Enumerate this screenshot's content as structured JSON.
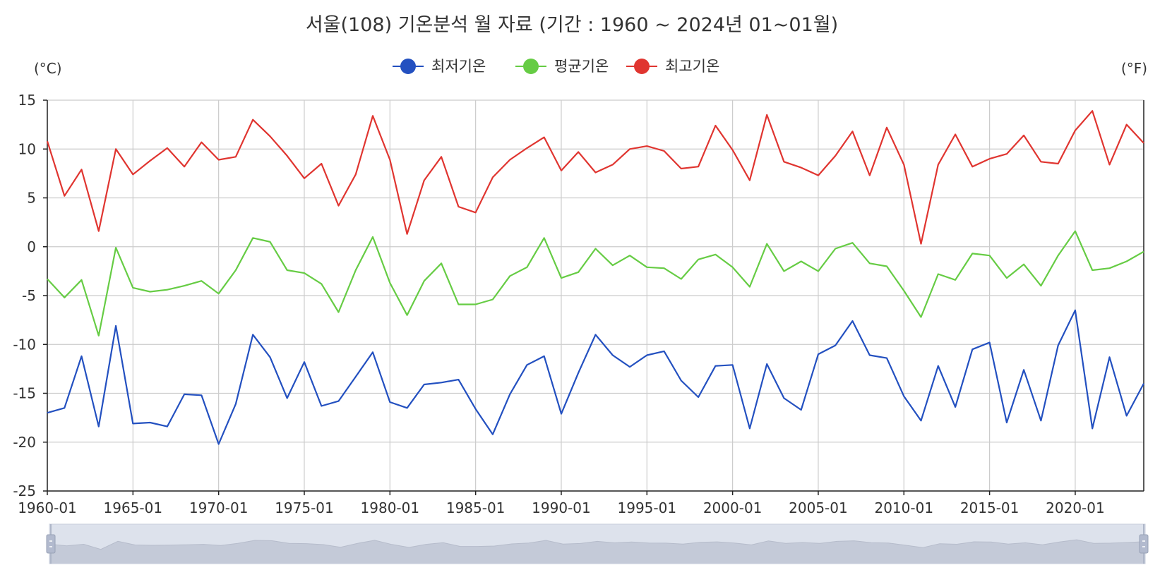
{
  "chart_data": {
    "type": "line",
    "title": "서울(108) 기온분석 월 자료 (기간 : 1960 ~ 2024년  01~01월)",
    "y_unit_left": "(°C)",
    "y_unit_right": "(°F)",
    "ylim": [
      -25,
      15
    ],
    "y_ticks": [
      15,
      10,
      5,
      0,
      -5,
      -10,
      -15,
      -20,
      -25
    ],
    "grid": true,
    "legend_position": "top-center",
    "x_start_year": 1960,
    "x_end_year": 2024,
    "x_tick_labels": [
      "1960-01",
      "1965-01",
      "1970-01",
      "1975-01",
      "1980-01",
      "1985-01",
      "1990-01",
      "1995-01",
      "2000-01",
      "2005-01",
      "2010-01",
      "2015-01",
      "2020-01"
    ],
    "x": [
      "1960-01",
      "1961-01",
      "1962-01",
      "1963-01",
      "1964-01",
      "1965-01",
      "1966-01",
      "1967-01",
      "1968-01",
      "1969-01",
      "1970-01",
      "1971-01",
      "1972-01",
      "1973-01",
      "1974-01",
      "1975-01",
      "1976-01",
      "1977-01",
      "1978-01",
      "1979-01",
      "1980-01",
      "1981-01",
      "1982-01",
      "1983-01",
      "1984-01",
      "1985-01",
      "1986-01",
      "1987-01",
      "1988-01",
      "1989-01",
      "1990-01",
      "1991-01",
      "1992-01",
      "1993-01",
      "1994-01",
      "1995-01",
      "1996-01",
      "1997-01",
      "1998-01",
      "1999-01",
      "2000-01",
      "2001-01",
      "2002-01",
      "2003-01",
      "2004-01",
      "2005-01",
      "2006-01",
      "2007-01",
      "2008-01",
      "2009-01",
      "2010-01",
      "2011-01",
      "2012-01",
      "2013-01",
      "2014-01",
      "2015-01",
      "2016-01",
      "2017-01",
      "2018-01",
      "2019-01",
      "2020-01",
      "2021-01",
      "2022-01",
      "2023-01",
      "2024-01"
    ],
    "series": [
      {
        "name": "최저기온",
        "color": "#2350c0",
        "values": [
          -17.0,
          -16.5,
          -11.2,
          -18.4,
          -8.1,
          -18.1,
          -18.0,
          -18.4,
          -15.1,
          -15.2,
          -20.2,
          -16.1,
          -9.0,
          -11.3,
          -15.5,
          -11.8,
          -16.3,
          -15.8,
          -13.3,
          -10.8,
          -15.9,
          -16.5,
          -14.1,
          -13.9,
          -13.6,
          -16.6,
          -19.2,
          -15.1,
          -12.1,
          -11.2,
          -17.1,
          -12.9,
          -9.0,
          -11.1,
          -12.3,
          -11.1,
          -10.7,
          -13.7,
          -15.4,
          -12.2,
          -12.1,
          -18.6,
          -12.0,
          -15.5,
          -16.7,
          -11.0,
          -10.1,
          -7.6,
          -11.1,
          -11.4,
          -15.3,
          -17.8,
          -12.2,
          -16.4,
          -10.5,
          -9.8,
          -18.0,
          -12.6,
          -17.8,
          -10.1,
          -6.5,
          -18.6,
          -11.3,
          -17.3,
          -14.0
        ]
      },
      {
        "name": "평균기온",
        "color": "#66cc44",
        "values": [
          -3.3,
          -5.2,
          -3.4,
          -9.1,
          -0.1,
          -4.2,
          -4.6,
          -4.4,
          -4.0,
          -3.5,
          -4.8,
          -2.4,
          0.9,
          0.5,
          -2.4,
          -2.7,
          -3.8,
          -6.7,
          -2.4,
          1.0,
          -3.7,
          -7.0,
          -3.5,
          -1.7,
          -5.9,
          -5.9,
          -5.4,
          -3.0,
          -2.1,
          0.9,
          -3.2,
          -2.6,
          -0.2,
          -1.9,
          -0.9,
          -2.1,
          -2.2,
          -3.3,
          -1.3,
          -0.8,
          -2.1,
          -4.1,
          0.3,
          -2.5,
          -1.5,
          -2.5,
          -0.2,
          0.4,
          -1.7,
          -2.0,
          -4.5,
          -7.2,
          -2.8,
          -3.4,
          -0.7,
          -0.9,
          -3.2,
          -1.8,
          -4.0,
          -0.9,
          1.6,
          -2.4,
          -2.2,
          -1.5,
          -0.5
        ]
      },
      {
        "name": "최고기온",
        "color": "#e03530",
        "values": [
          10.8,
          5.2,
          7.9,
          1.6,
          10.0,
          7.4,
          8.8,
          10.1,
          8.2,
          10.7,
          8.9,
          9.2,
          13.0,
          11.3,
          9.3,
          7.0,
          8.5,
          4.2,
          7.4,
          13.4,
          8.9,
          1.3,
          6.8,
          9.2,
          4.1,
          3.5,
          7.1,
          8.9,
          10.1,
          11.2,
          7.8,
          9.7,
          7.6,
          8.4,
          10.0,
          10.3,
          9.8,
          8.0,
          8.2,
          12.4,
          9.9,
          6.8,
          13.5,
          8.7,
          8.1,
          7.3,
          9.3,
          11.8,
          7.3,
          12.2,
          8.4,
          0.3,
          8.4,
          11.5,
          8.2,
          9.0,
          9.5,
          11.4,
          8.7,
          8.5,
          11.9,
          13.9,
          8.4,
          12.5,
          10.6
        ]
      }
    ]
  }
}
